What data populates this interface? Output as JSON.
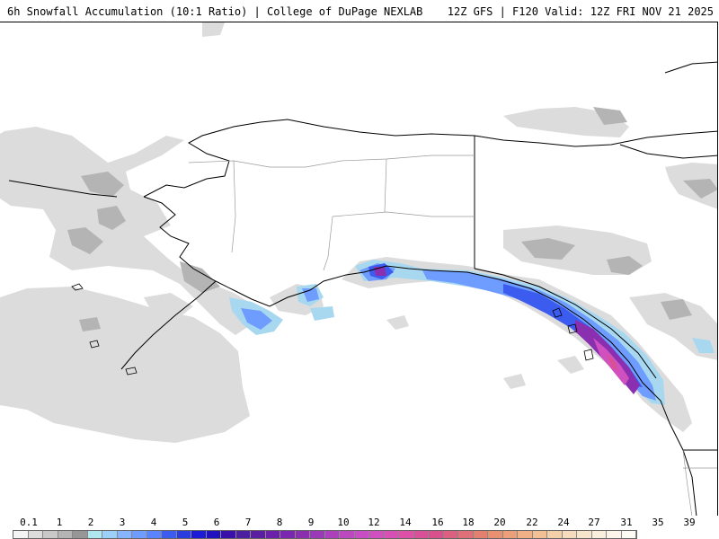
{
  "header": {
    "title_left": "6h Snowfall Accumulation (10:1 Ratio) | College of DuPage NEXLAB",
    "title_right": "12Z GFS | F120 Valid: 12Z FRI NOV 21 2025"
  },
  "colors": {
    "light_gray": "#dcdcdc",
    "mid_gray": "#b4b4b4",
    "dark_gray": "#969696",
    "light_blue": "#a8d8f0",
    "blue": "#6e9cff",
    "royal_blue": "#3c5cf0",
    "deep_blue": "#1c1cd8",
    "indigo": "#4b1fa0",
    "purple": "#8a2fb0",
    "magenta": "#c040b8",
    "pink": "#d85098"
  },
  "legend": {
    "labels": [
      "0.1",
      "1",
      "2",
      "3",
      "4",
      "5",
      "6",
      "7",
      "8",
      "9",
      "10",
      "12",
      "14",
      "16",
      "18",
      "20",
      "22",
      "24",
      "27",
      "31",
      "35",
      "39"
    ],
    "swatches": [
      "#f4f4f4",
      "#dcdcdc",
      "#c8c8c8",
      "#b4b4b4",
      "#969696",
      "#b0e6f0",
      "#9cd0f8",
      "#86b4ff",
      "#6e9cff",
      "#5a84ff",
      "#3c5cf0",
      "#2a3ce0",
      "#1c1cd8",
      "#2010c0",
      "#3a10a8",
      "#4b1fa0",
      "#5c1ea0",
      "#6a20a8",
      "#7a28b0",
      "#8a2fb0",
      "#9a3ab8",
      "#ac40bc",
      "#bc48c0",
      "#c84cc4",
      "#d050c0",
      "#d850b4",
      "#dc50a8",
      "#d85098",
      "#d8508c",
      "#dc6080",
      "#e07078",
      "#e48070",
      "#e89070",
      "#eca07a",
      "#f0b086",
      "#f2c094",
      "#f4d0a8",
      "#f6dcbc",
      "#f8e6cc",
      "#faeedc",
      "#fcf4e8",
      "#fefaf4"
    ]
  }
}
